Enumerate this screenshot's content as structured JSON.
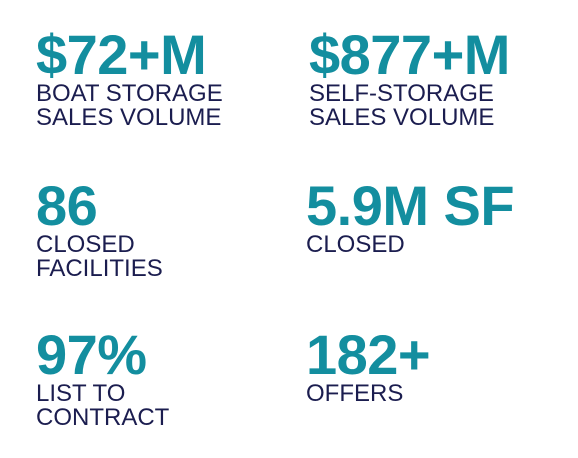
{
  "stats": [
    {
      "value": "$72+M",
      "label_lines": [
        "BOAT STORAGE",
        "SALES VOLUME"
      ]
    },
    {
      "value": "$877+M",
      "label_lines": [
        "SELF-STORAGE",
        "SALES VOLUME"
      ]
    },
    {
      "value": "86",
      "label_lines": [
        "CLOSED",
        "FACILITIES"
      ]
    },
    {
      "value": "5.9M SF",
      "label_lines": [
        "CLOSED"
      ]
    },
    {
      "value": "97%",
      "label_lines": [
        "LIST TO",
        "CONTRACT"
      ]
    },
    {
      "value": "182+",
      "label_lines": [
        "OFFERS"
      ]
    }
  ],
  "colors": {
    "value": "#138e9f",
    "label": "#1b1d4f",
    "background": "#ffffff"
  }
}
